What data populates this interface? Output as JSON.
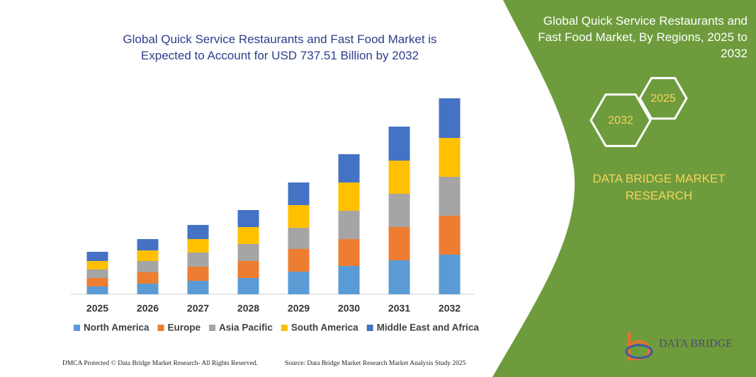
{
  "chart_data": {
    "type": "bar",
    "stacked": true,
    "title": "Global Quick Service Restaurants and Fast Food Market is Expected to Account for USD 737.51 Billion by 2032",
    "categories": [
      "2025",
      "2026",
      "2027",
      "2028",
      "2029",
      "2030",
      "2031",
      "2032"
    ],
    "series": [
      {
        "name": "North America",
        "color": "#5b9bd5",
        "values": [
          11,
          15,
          19,
          23,
          32,
          40,
          48,
          56
        ]
      },
      {
        "name": "Europe",
        "color": "#ed7d31",
        "values": [
          12,
          16,
          20,
          24,
          32,
          38,
          47,
          55
        ]
      },
      {
        "name": "Asia Pacific",
        "color": "#a5a5a5",
        "values": [
          12,
          16,
          20,
          24,
          30,
          40,
          47,
          55
        ]
      },
      {
        "name": "South America",
        "color": "#ffc000",
        "values": [
          12,
          15,
          19,
          24,
          32,
          40,
          47,
          55
        ]
      },
      {
        "name": "Middle East and Africa",
        "color": "#4472c4",
        "values": [
          13,
          16,
          20,
          24,
          32,
          40,
          48,
          56
        ]
      }
    ],
    "ylim": [
      0,
      300
    ]
  },
  "panel": {
    "title": "Global Quick Service Restaurants and Fast Food Market, By Regions, 2025 to 2032",
    "hex_small": "2025",
    "hex_large": "2032",
    "brand": "DATA BRIDGE MARKET RESEARCH",
    "logo": "DATA BRIDGE"
  },
  "footer": {
    "left": "DMCA Protected © Data Bridge Market Research- All Rights Reserved.",
    "right": "Source: Data Bridge Market Research Market Analysis Study 2025"
  }
}
